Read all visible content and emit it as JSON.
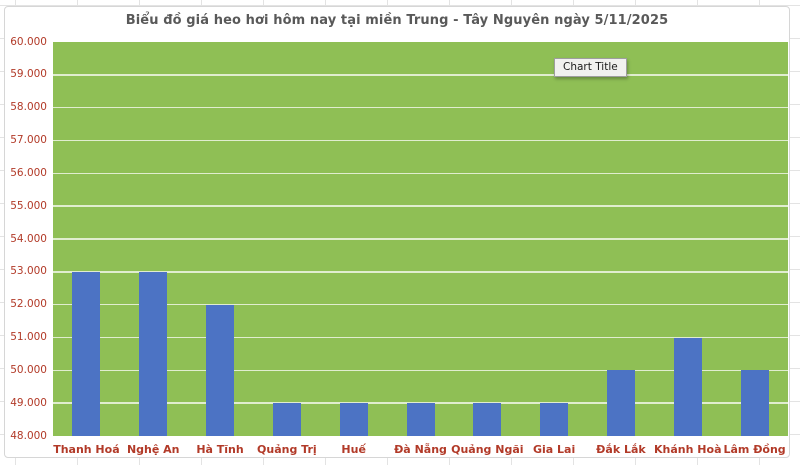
{
  "chart": {
    "title": "Biểu đồ giá heo hơi hôm nay tại miền Trung - Tây Nguyên ngày 5/11/2025",
    "tooltip": "Chart Title"
  },
  "chart_data": {
    "type": "bar",
    "title": "Biểu đồ giá heo hơi hôm nay tại miền Trung - Tây Nguyên ngày 5/11/2025",
    "categories": [
      "Thanh Hoá",
      "Nghệ An",
      "Hà Tĩnh",
      "Quảng Trị",
      "Huế",
      "Đà Nẵng",
      "Quảng Ngãi",
      "Gia Lai",
      "Đắk Lắk",
      "Khánh Hoà",
      "Lâm Đồng"
    ],
    "values": [
      53000,
      53000,
      52000,
      49000,
      49000,
      49000,
      49000,
      49000,
      50000,
      51000,
      50000
    ],
    "xlabel": "",
    "ylabel": "",
    "ylim": [
      48000,
      60000
    ],
    "y_step": 1000,
    "y_tick_labels": [
      "60.000",
      "59.000",
      "58.000",
      "57.000",
      "56.000",
      "55.000",
      "54.000",
      "53.000",
      "52.000",
      "51.000",
      "50.000",
      "49.000",
      "48.000"
    ],
    "grid": "on",
    "legend": "none",
    "colors": {
      "bar": "#4C73C4",
      "plot_background": "#8FBF55",
      "gridline": "rgba(255,255,255,0.72)",
      "axis_labels": "#B23A28",
      "title": "#595959",
      "chart_background": "#ffffff"
    }
  }
}
